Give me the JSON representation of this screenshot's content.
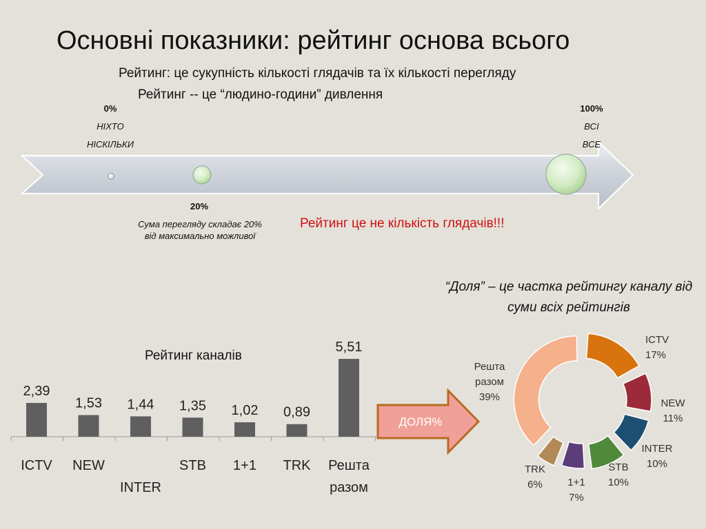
{
  "title": "Основні показники: рейтинг основа всього",
  "definition_line1": "Рейтинг:  це сукупність кількості глядачів  та їх кількості перегляду",
  "definition_line2": "Рейтинг --  це “людино-години” дивлення",
  "scale": {
    "start": {
      "percent": "0%",
      "line1": "НІХТО",
      "line2": "НІСКІЛЬКИ"
    },
    "end": {
      "percent": "100%",
      "line1": "ВСІ",
      "line2": "ВСЕ"
    },
    "mid": {
      "percent": "20%",
      "line1": "Сума перегляду  складає 20%",
      "line2": "від максимально можливої"
    }
  },
  "red_note": "Рейтинг це не кількість глядачів!!!",
  "share_definition": "“Доля” – це частка рейтингу каналу від суми всіх рейтингів",
  "arrow_label": "ДОЛЯ%",
  "colors": {
    "arrow_fill": "#f0a098",
    "arrow_stroke": "#b86a20",
    "bar": "#5f5f5f",
    "red": "#d01010"
  },
  "chart_data": [
    {
      "type": "bar",
      "title": "Рейтинг каналів",
      "categories": [
        "ICTV",
        "NEW",
        "INTER",
        "STB",
        "1+1",
        "TRK",
        "Решта разом"
      ],
      "category_lines": [
        [
          "ICTV"
        ],
        [
          "NEW"
        ],
        [
          "",
          "INTER"
        ],
        [
          "STB"
        ],
        [
          "1+1"
        ],
        [
          "TRK"
        ],
        [
          "Решта",
          "разом"
        ]
      ],
      "values": [
        2.39,
        1.53,
        1.44,
        1.35,
        1.02,
        0.89,
        5.51
      ],
      "value_labels": [
        "2,39",
        "1,53",
        "1,44",
        "1,35",
        "1,02",
        "0,89",
        "5,51"
      ],
      "ylim": [
        0,
        5.51
      ]
    },
    {
      "type": "pie",
      "variant": "exploded-doughnut",
      "slices": [
        {
          "name": "ICTV",
          "value": 17,
          "label": "17%",
          "color": "#d9730d"
        },
        {
          "name": "NEW",
          "value": 11,
          "label": "11%",
          "color": "#9c2a3a"
        },
        {
          "name": "INTER",
          "value": 10,
          "label": "10%",
          "color": "#1d4f72"
        },
        {
          "name": "STB",
          "value": 10,
          "label": "10%",
          "color": "#4f8a3a"
        },
        {
          "name": "1+1",
          "value": 7,
          "label": "7%",
          "color": "#5b3d7a"
        },
        {
          "name": "TRK",
          "value": 6,
          "label": "6%",
          "color": "#b38a55"
        },
        {
          "name": "Решта разом",
          "value": 39,
          "label": "39%",
          "color": "#f5b08c"
        }
      ]
    }
  ]
}
